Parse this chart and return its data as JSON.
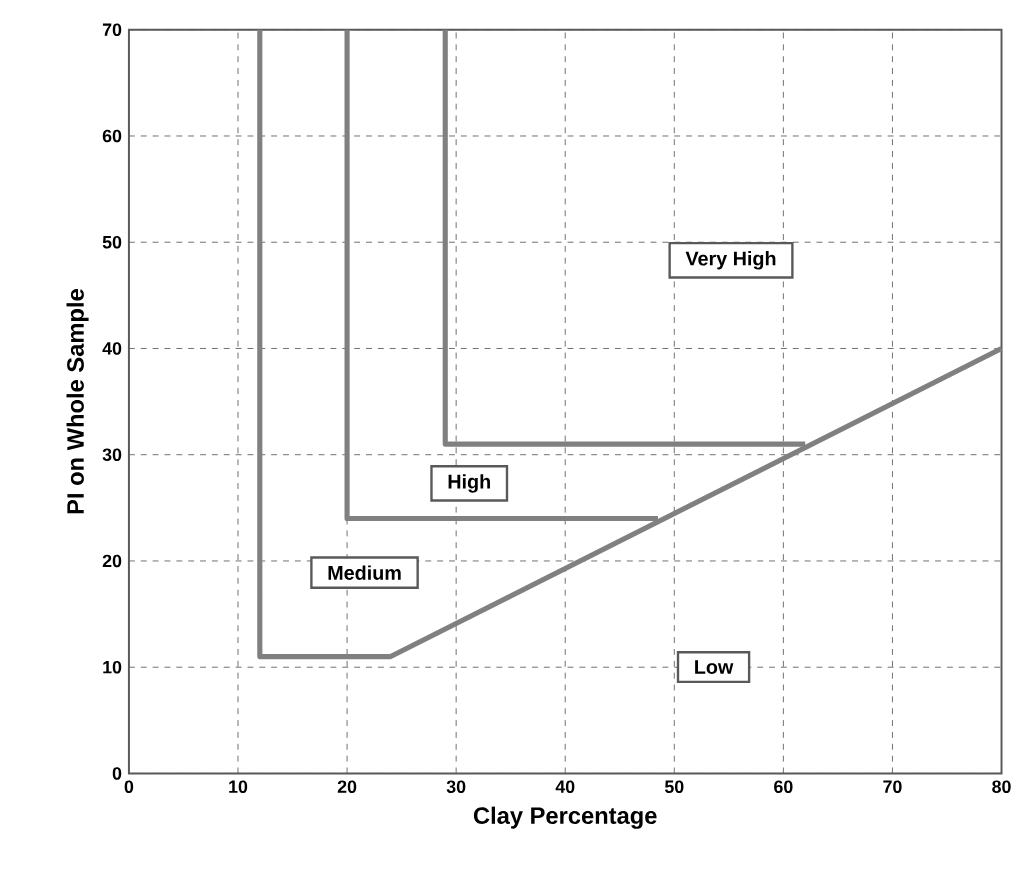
{
  "chart_data": {
    "type": "line",
    "xlabel": "Clay Percentage",
    "ylabel": "PI on Whole Sample",
    "xlim": [
      0,
      80
    ],
    "ylim": [
      0,
      70
    ],
    "xticks": [
      0,
      10,
      20,
      30,
      40,
      50,
      60,
      70,
      80
    ],
    "yticks": [
      0,
      10,
      20,
      30,
      40,
      50,
      60,
      70
    ],
    "grid": true,
    "marker": "none",
    "line_style": "solid",
    "series": [
      {
        "color": "#808080",
        "x": [
          12,
          12,
          24,
          80
        ],
        "values": [
          70,
          11,
          11,
          40
        ]
      },
      {
        "color": "#808080",
        "x": [
          20,
          20,
          48.5
        ],
        "values": [
          70,
          24,
          24
        ]
      },
      {
        "color": "#808080",
        "x": [
          29,
          29,
          62
        ],
        "values": [
          70,
          31,
          31
        ]
      }
    ],
    "annotations": [
      "Very High",
      "High",
      "Medium",
      "Low"
    ]
  }
}
